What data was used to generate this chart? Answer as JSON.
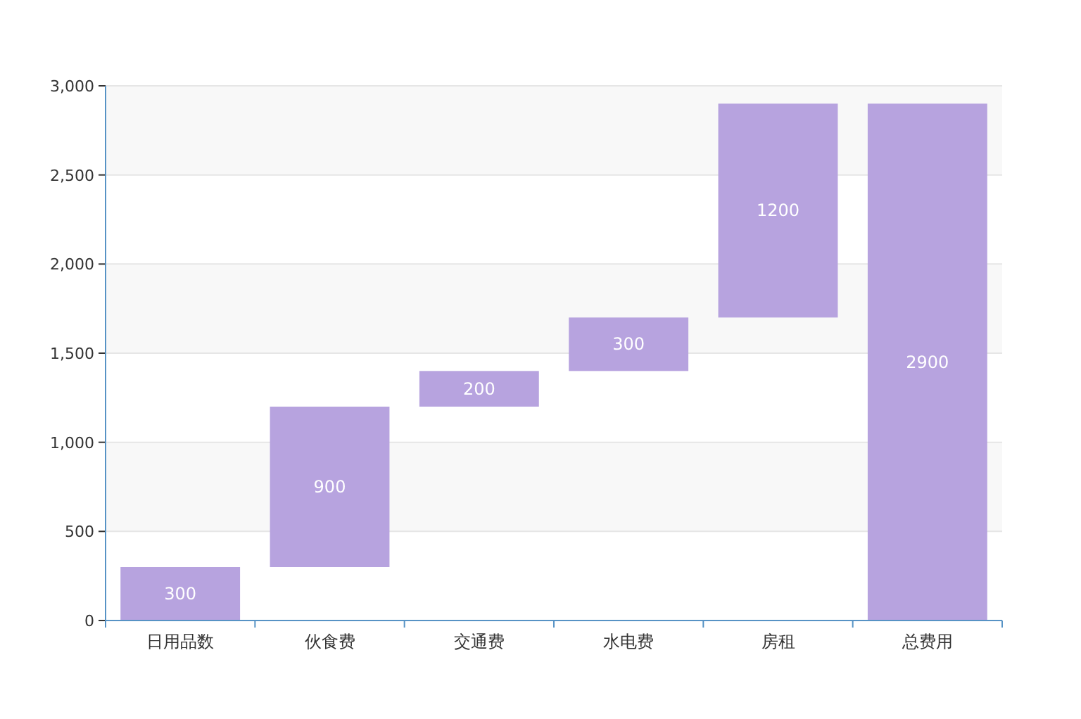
{
  "chart_data": {
    "type": "bar",
    "categories": [
      "日用品数",
      "伙食费",
      "交通费",
      "水电费",
      "房租",
      "总费用"
    ],
    "values": [
      300,
      900,
      200,
      300,
      1200,
      2900
    ],
    "base": [
      0,
      300,
      1200,
      1400,
      1700,
      0
    ],
    "color": "#b7a3df",
    "ylim": [
      0,
      3000
    ],
    "yticks": [
      0,
      {
        "value": 500,
        "label": "500"
      },
      {
        "value": 1000,
        "label": "1,000"
      },
      {
        "value": 1500,
        "label": "1,500"
      },
      {
        "value": 2000,
        "label": "2,000"
      },
      {
        "value": 2500,
        "label": "2,500"
      },
      {
        "value": 3000,
        "label": "3,000"
      }
    ],
    "grid": "y",
    "bands": [
      {
        "axis": "y",
        "from": 500,
        "to": 1000,
        "color": "#f8f8f8"
      },
      {
        "axis": "y",
        "from": 1500,
        "to": 2000,
        "color": "#f8f8f8"
      },
      {
        "axis": "y",
        "from": 2500,
        "to": 3000,
        "color": "#f8f8f8"
      }
    ],
    "data_labels": true
  }
}
